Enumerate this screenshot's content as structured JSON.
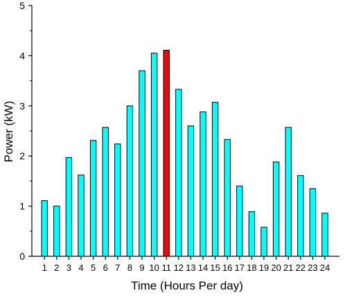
{
  "chart_data": {
    "type": "bar",
    "title": "",
    "xlabel": "Time (Hours Per day)",
    "ylabel": "Power (kW)",
    "ylim": [
      0,
      5
    ],
    "yticks": [
      0,
      1,
      2,
      3,
      4,
      5
    ],
    "grid": false,
    "legend": "none",
    "categories": [
      "1",
      "2",
      "3",
      "4",
      "5",
      "6",
      "7",
      "8",
      "9",
      "10",
      "11",
      "12",
      "13",
      "14",
      "15",
      "16",
      "17",
      "18",
      "19",
      "20",
      "21",
      "22",
      "23",
      "24"
    ],
    "values": [
      1.11,
      1.0,
      1.97,
      1.62,
      2.31,
      2.57,
      2.24,
      3.0,
      3.7,
      4.05,
      4.11,
      3.33,
      2.6,
      2.88,
      3.07,
      2.33,
      1.4,
      0.89,
      0.58,
      1.88,
      2.57,
      1.61,
      1.35,
      0.86
    ],
    "bar_color": "#00FFFF",
    "highlight_color": "#FF0000",
    "highlight_category": "11"
  }
}
